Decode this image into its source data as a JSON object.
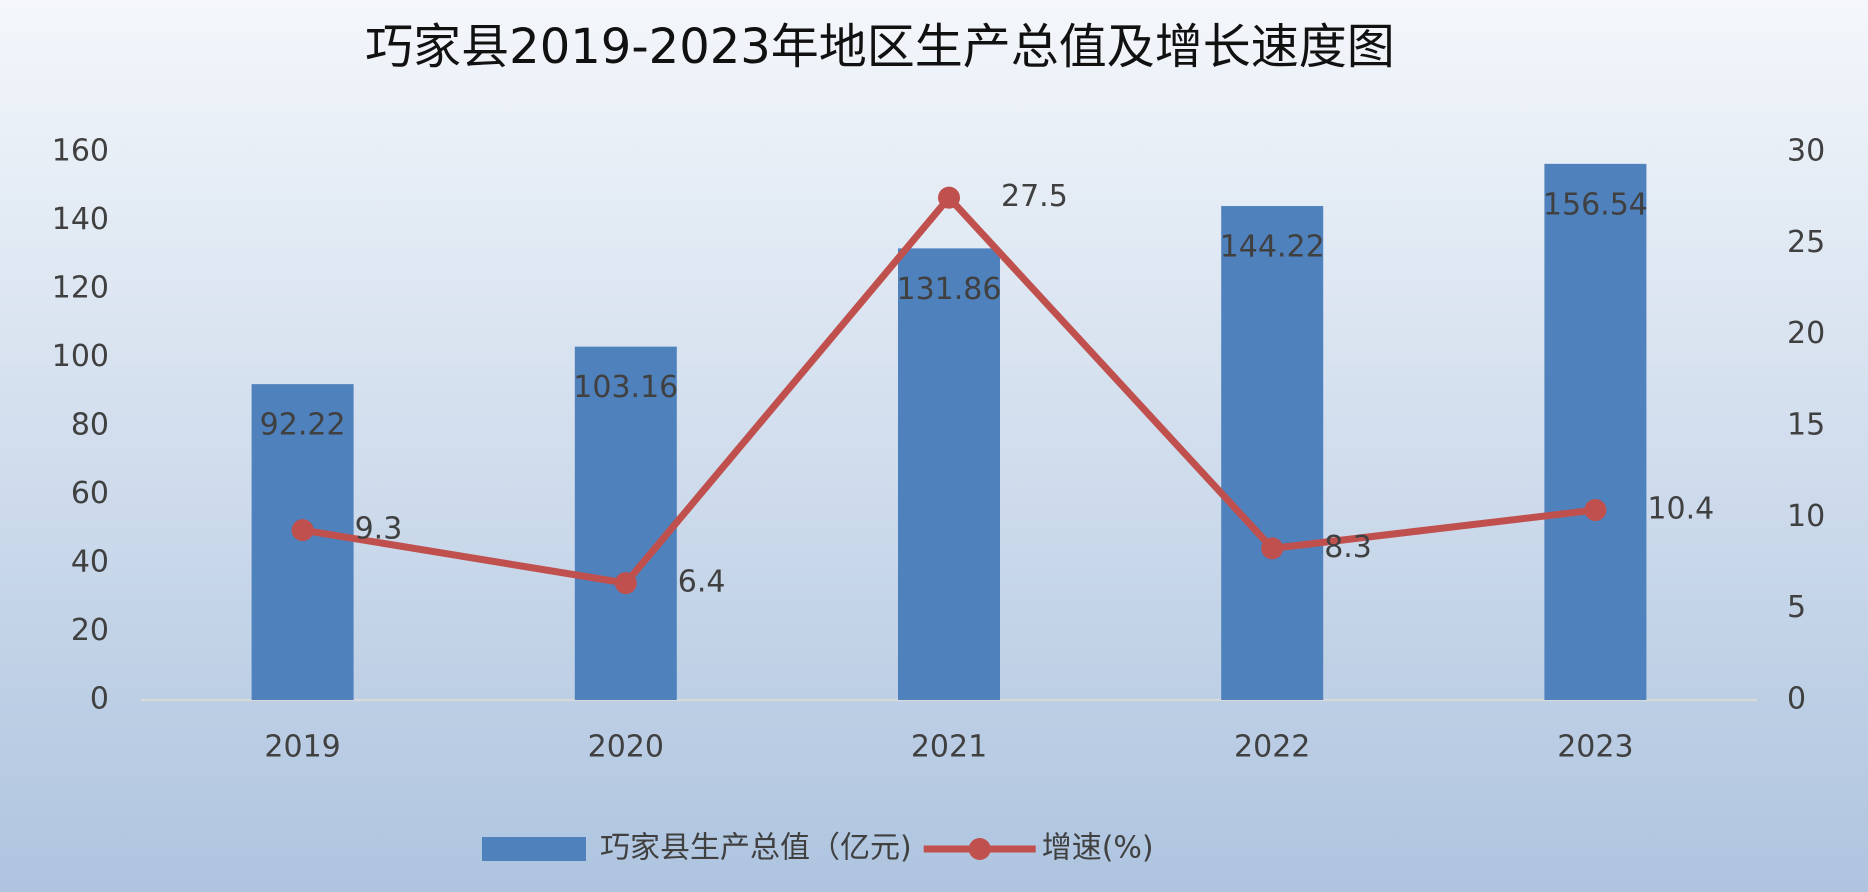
{
  "chart_data": {
    "type": "bar",
    "title": "巧家县2019-2023年地区生产总值及增长速度图",
    "categories": [
      "2019",
      "2020",
      "2021",
      "2022",
      "2023"
    ],
    "series": [
      {
        "name": "巧家县生产总值（亿元)",
        "type": "bar",
        "color": "#4f81bd",
        "values": [
          92.22,
          103.16,
          131.86,
          144.22,
          156.54
        ]
      },
      {
        "name": "增速(%)",
        "type": "line",
        "axis": "y2",
        "color": "#c0504d",
        "values": [
          9.3,
          6.4,
          27.5,
          8.3,
          10.4
        ]
      }
    ],
    "ylim": [
      0,
      160
    ],
    "yticks": [
      0,
      20,
      40,
      60,
      80,
      100,
      120,
      140,
      160
    ],
    "y2lim": [
      0,
      30
    ],
    "y2ticks": [
      0,
      5,
      10,
      15,
      20,
      25,
      30
    ],
    "grid": false,
    "legend": "bottom"
  }
}
